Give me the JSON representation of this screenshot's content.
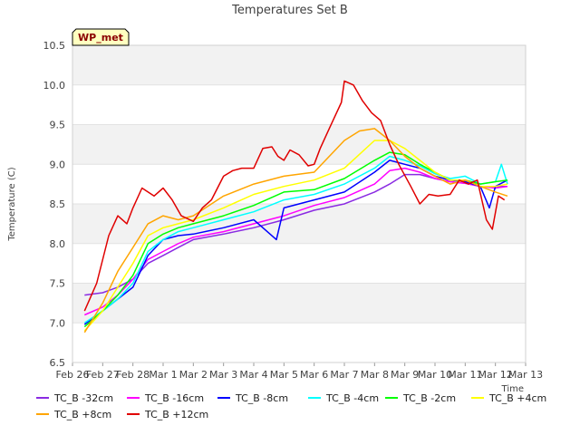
{
  "chart_data": {
    "type": "line",
    "title": "Temperatures Set B",
    "xlabel": "Time",
    "ylabel": "Temperature (C)",
    "badge": "WP_met",
    "xlim": [
      0,
      15
    ],
    "ylim": [
      6.5,
      10.5
    ],
    "x_ticks": [
      {
        "x": 0,
        "label": "Feb 26"
      },
      {
        "x": 1,
        "label": "Feb 27"
      },
      {
        "x": 2,
        "label": "Feb 28"
      },
      {
        "x": 3,
        "label": "Mar 1"
      },
      {
        "x": 4,
        "label": "Mar 2"
      },
      {
        "x": 5,
        "label": "Mar 3"
      },
      {
        "x": 6,
        "label": "Mar 4"
      },
      {
        "x": 7,
        "label": "Mar 5"
      },
      {
        "x": 8,
        "label": "Mar 6"
      },
      {
        "x": 9,
        "label": "Mar 7"
      },
      {
        "x": 10,
        "label": "Mar 8"
      },
      {
        "x": 11,
        "label": "Mar 9"
      },
      {
        "x": 12,
        "label": "Mar 10"
      },
      {
        "x": 13,
        "label": "Mar 11"
      },
      {
        "x": 14,
        "label": "Mar 12"
      },
      {
        "x": 15,
        "label": "Mar 13"
      }
    ],
    "y_ticks": [
      6.5,
      7.0,
      7.5,
      8.0,
      8.5,
      9.0,
      9.5,
      10.0,
      10.5
    ],
    "grid": "horizontal bands",
    "legend_position": "bottom",
    "series": [
      {
        "name": "TC_B -32cm",
        "color": "#8a2be2",
        "x": [
          0.4,
          1.0,
          1.5,
          2.0,
          2.5,
          3.0,
          3.5,
          4.0,
          5.0,
          6.0,
          7.0,
          8.0,
          9.0,
          10.0,
          10.5,
          11.0,
          11.5,
          12.0,
          12.5,
          13.0,
          13.5,
          14.0,
          14.4
        ],
        "y": [
          7.35,
          7.38,
          7.45,
          7.55,
          7.75,
          7.85,
          7.95,
          8.05,
          8.12,
          8.2,
          8.3,
          8.42,
          8.5,
          8.65,
          8.75,
          8.87,
          8.87,
          8.82,
          8.78,
          8.76,
          8.72,
          8.72,
          8.72
        ]
      },
      {
        "name": "TC_B -16cm",
        "color": "#ff00ff",
        "x": [
          0.4,
          1.0,
          1.5,
          2.0,
          2.5,
          3.0,
          3.5,
          4.0,
          5.0,
          6.0,
          7.0,
          8.0,
          9.0,
          10.0,
          10.5,
          11.0,
          11.5,
          12.0,
          12.5,
          13.0,
          13.5,
          14.0,
          14.4
        ],
        "y": [
          7.1,
          7.2,
          7.35,
          7.55,
          7.8,
          7.9,
          8.0,
          8.08,
          8.15,
          8.25,
          8.35,
          8.48,
          8.58,
          8.75,
          8.92,
          8.95,
          8.9,
          8.82,
          8.78,
          8.76,
          8.72,
          8.7,
          8.72
        ]
      },
      {
        "name": "TC_B -8cm",
        "color": "#0000ff",
        "x": [
          0.4,
          1.0,
          1.5,
          2.0,
          2.5,
          3.0,
          3.5,
          4.0,
          5.0,
          6.0,
          6.75,
          7.0,
          8.0,
          9.0,
          10.0,
          10.5,
          11.0,
          11.5,
          12.0,
          12.5,
          13.0,
          13.5,
          13.8,
          14.0,
          14.4
        ],
        "y": [
          6.98,
          7.15,
          7.3,
          7.45,
          7.85,
          8.05,
          8.1,
          8.12,
          8.2,
          8.3,
          8.05,
          8.45,
          8.55,
          8.65,
          8.9,
          9.05,
          9.0,
          8.95,
          8.85,
          8.8,
          8.78,
          8.72,
          8.45,
          8.72,
          8.8
        ]
      },
      {
        "name": "TC_B -4cm",
        "color": "#00ffff",
        "x": [
          0.4,
          1.0,
          1.5,
          2.0,
          2.5,
          3.0,
          3.5,
          4.0,
          5.0,
          6.0,
          7.0,
          8.0,
          9.0,
          10.0,
          10.5,
          11.0,
          11.5,
          12.0,
          12.5,
          13.0,
          13.5,
          14.0,
          14.2,
          14.4
        ],
        "y": [
          7.0,
          7.15,
          7.3,
          7.5,
          7.9,
          8.05,
          8.15,
          8.2,
          8.3,
          8.4,
          8.55,
          8.62,
          8.75,
          8.95,
          9.1,
          9.05,
          8.98,
          8.88,
          8.82,
          8.85,
          8.75,
          8.78,
          9.0,
          8.75
        ]
      },
      {
        "name": "TC_B -2cm",
        "color": "#00ff00",
        "x": [
          0.4,
          1.0,
          1.5,
          2.0,
          2.5,
          3.0,
          3.5,
          4.0,
          5.0,
          6.0,
          7.0,
          8.0,
          9.0,
          10.0,
          10.5,
          11.0,
          11.5,
          12.0,
          12.5,
          13.0,
          13.5,
          14.0,
          14.4
        ],
        "y": [
          6.95,
          7.15,
          7.35,
          7.6,
          8.0,
          8.12,
          8.2,
          8.25,
          8.35,
          8.48,
          8.65,
          8.68,
          8.82,
          9.05,
          9.15,
          9.12,
          9.0,
          8.9,
          8.8,
          8.8,
          8.75,
          8.78,
          8.8
        ]
      },
      {
        "name": "TC_B +4cm",
        "color": "#ffff00",
        "x": [
          0.4,
          1.0,
          1.5,
          2.0,
          2.5,
          3.0,
          3.5,
          4.0,
          5.0,
          6.0,
          7.0,
          8.0,
          9.0,
          10.0,
          10.5,
          11.0,
          11.5,
          12.0,
          12.5,
          13.0,
          13.5,
          14.0,
          14.4
        ],
        "y": [
          6.9,
          7.15,
          7.45,
          7.75,
          8.1,
          8.2,
          8.25,
          8.3,
          8.45,
          8.62,
          8.72,
          8.8,
          8.95,
          9.3,
          9.3,
          9.2,
          9.05,
          8.9,
          8.8,
          8.8,
          8.72,
          8.72,
          8.75
        ]
      },
      {
        "name": "TC_B +8cm",
        "color": "#ffa500",
        "x": [
          0.4,
          1.0,
          1.5,
          2.0,
          2.5,
          3.0,
          3.5,
          4.0,
          5.0,
          6.0,
          7.0,
          8.0,
          9.0,
          9.5,
          10.0,
          10.5,
          11.0,
          11.5,
          12.0,
          12.5,
          13.0,
          13.5,
          14.0,
          14.4
        ],
        "y": [
          6.88,
          7.25,
          7.65,
          7.95,
          8.25,
          8.35,
          8.3,
          8.35,
          8.6,
          8.75,
          8.85,
          8.9,
          9.3,
          9.42,
          9.45,
          9.3,
          9.1,
          8.95,
          8.85,
          8.75,
          8.8,
          8.72,
          8.65,
          8.6
        ]
      },
      {
        "name": "TC_B +12cm",
        "color": "#e00000",
        "x": [
          0.4,
          0.8,
          1.2,
          1.5,
          1.8,
          2.0,
          2.3,
          2.7,
          3.0,
          3.3,
          3.6,
          4.0,
          4.3,
          4.6,
          5.0,
          5.3,
          5.6,
          6.0,
          6.3,
          6.6,
          6.8,
          7.0,
          7.2,
          7.5,
          7.8,
          8.0,
          8.2,
          8.5,
          8.9,
          9.0,
          9.3,
          9.6,
          9.9,
          10.2,
          10.5,
          10.8,
          11.2,
          11.5,
          11.8,
          12.1,
          12.5,
          12.8,
          13.1,
          13.4,
          13.7,
          13.9,
          14.1,
          14.3
        ],
        "y": [
          7.15,
          7.5,
          8.1,
          8.35,
          8.25,
          8.45,
          8.7,
          8.6,
          8.7,
          8.55,
          8.35,
          8.28,
          8.45,
          8.55,
          8.85,
          8.92,
          8.95,
          8.95,
          9.2,
          9.22,
          9.1,
          9.05,
          9.18,
          9.12,
          8.98,
          9.0,
          9.2,
          9.45,
          9.78,
          10.05,
          10.0,
          9.8,
          9.65,
          9.55,
          9.25,
          9.0,
          8.72,
          8.5,
          8.62,
          8.6,
          8.62,
          8.8,
          8.75,
          8.8,
          8.3,
          8.18,
          8.6,
          8.55
        ]
      }
    ]
  }
}
